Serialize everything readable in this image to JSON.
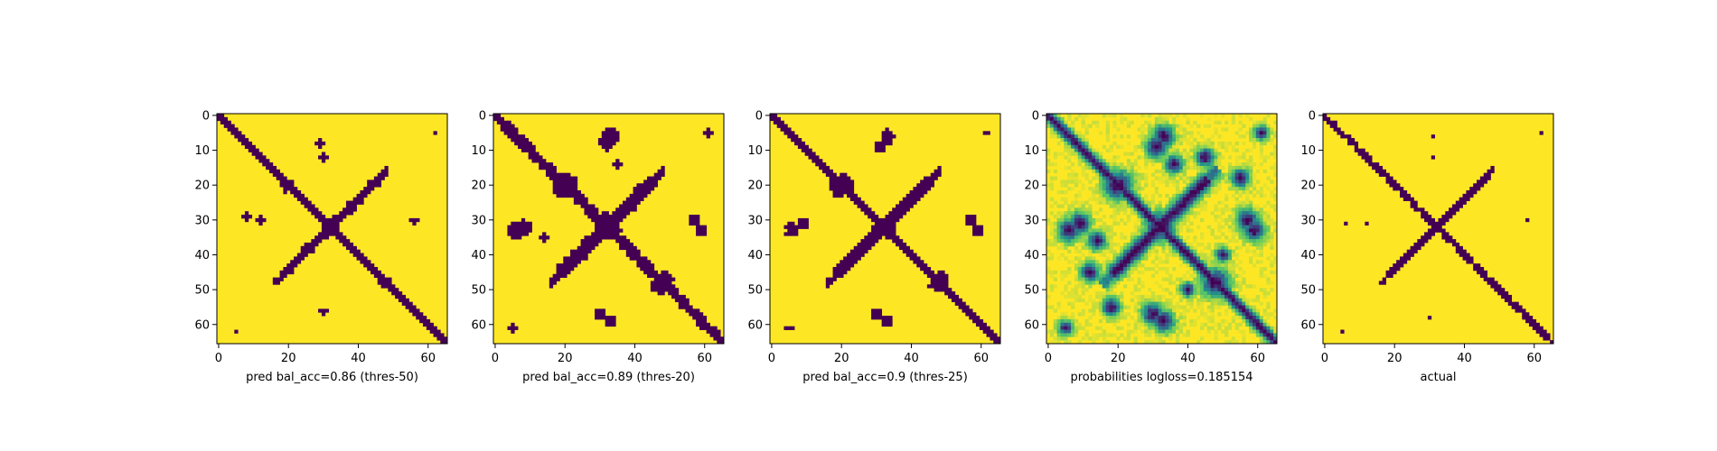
{
  "chart_data": [
    {
      "type": "heatmap",
      "title": "",
      "xlabel": "pred bal_acc=0.86 (thres-50)",
      "ylabel": "",
      "size": 66,
      "xlim": [
        0,
        66
      ],
      "ylim": [
        66,
        0
      ],
      "xticks": [
        0,
        20,
        40,
        60
      ],
      "yticks": [
        0,
        10,
        20,
        30,
        40,
        50,
        60
      ],
      "binary": true,
      "diag_width": 1.6,
      "cross_width": 1.6,
      "cross_center": 32,
      "cross_halfspan": 14,
      "blobs": [
        [
          20,
          20,
          2.5
        ],
        [
          32,
          32,
          3
        ],
        [
          48,
          48,
          2.5
        ],
        [
          29,
          8,
          1.5
        ],
        [
          12,
          30,
          1.3
        ],
        [
          30,
          56,
          1.3
        ],
        [
          5,
          62,
          1
        ]
      ],
      "colormap": {
        "low": "#440154",
        "high": "#fde725"
      }
    },
    {
      "type": "heatmap",
      "title": "",
      "xlabel": "pred bal_acc=0.89 (thres-20)",
      "ylabel": "",
      "size": 66,
      "xlim": [
        0,
        66
      ],
      "ylim": [
        66,
        0
      ],
      "xticks": [
        0,
        20,
        40,
        60
      ],
      "yticks": [
        0,
        10,
        20,
        30,
        40,
        50,
        60
      ],
      "binary": true,
      "diag_width": 2.4,
      "cross_width": 2.4,
      "cross_center": 32,
      "cross_halfspan": 14,
      "blobs": [
        [
          20,
          20,
          4.5
        ],
        [
          32,
          32,
          4.5
        ],
        [
          48,
          48,
          4
        ],
        [
          33,
          6,
          3
        ],
        [
          8,
          32,
          2.5
        ],
        [
          30,
          57,
          2
        ],
        [
          59,
          33,
          2
        ],
        [
          5,
          61,
          1.5
        ],
        [
          14,
          35,
          1.5
        ]
      ],
      "colormap": {
        "low": "#440154",
        "high": "#fde725"
      }
    },
    {
      "type": "heatmap",
      "title": "",
      "xlabel": "pred bal_acc=0.9 (thres-25)",
      "ylabel": "",
      "size": 66,
      "xlim": [
        0,
        66
      ],
      "ylim": [
        66,
        0
      ],
      "xticks": [
        0,
        20,
        40,
        60
      ],
      "yticks": [
        0,
        10,
        20,
        30,
        40,
        50,
        60
      ],
      "binary": true,
      "diag_width": 2.1,
      "cross_width": 2.1,
      "cross_center": 32,
      "cross_halfspan": 14,
      "blobs": [
        [
          20,
          20,
          4
        ],
        [
          32,
          32,
          3.5
        ],
        [
          48,
          48,
          3.5
        ],
        [
          33,
          6,
          2.5
        ],
        [
          9,
          31,
          2
        ],
        [
          30,
          57,
          2
        ],
        [
          59,
          33,
          2
        ],
        [
          5,
          61,
          1.2
        ]
      ],
      "colormap": {
        "low": "#440154",
        "high": "#fde725"
      }
    },
    {
      "type": "heatmap",
      "title": "",
      "xlabel": "probabilities logloss=0.185154",
      "ylabel": "",
      "size": 66,
      "xlim": [
        0,
        66
      ],
      "ylim": [
        66,
        0
      ],
      "xticks": [
        0,
        20,
        40,
        60
      ],
      "yticks": [
        0,
        10,
        20,
        30,
        40,
        50,
        60
      ],
      "binary": false,
      "diag_width": 2.2,
      "cross_width": 2.2,
      "cross_center": 32,
      "cross_halfspan": 14,
      "blobs": [
        [
          20,
          20,
          4
        ],
        [
          32,
          32,
          4
        ],
        [
          48,
          48,
          4
        ],
        [
          33,
          6,
          3
        ],
        [
          9,
          31,
          3
        ],
        [
          30,
          57,
          3
        ],
        [
          59,
          33,
          3
        ],
        [
          5,
          61,
          2
        ],
        [
          14,
          36,
          2.5
        ],
        [
          45,
          12,
          2.5
        ],
        [
          55,
          18,
          2.5
        ],
        [
          40,
          50,
          2
        ]
      ],
      "colormap": {
        "stops": [
          "#440154",
          "#3b528b",
          "#21918c",
          "#5ec962",
          "#fde725"
        ]
      }
    },
    {
      "type": "heatmap",
      "title": "",
      "xlabel": "actual",
      "ylabel": "",
      "size": 66,
      "xlim": [
        0,
        66
      ],
      "ylim": [
        66,
        0
      ],
      "xticks": [
        0,
        20,
        40,
        60
      ],
      "yticks": [
        0,
        10,
        20,
        30,
        40,
        50,
        60
      ],
      "binary": true,
      "diag_width": 1.3,
      "cross_width": 1.3,
      "cross_center": 32,
      "cross_halfspan": 14,
      "blobs": [
        [
          20,
          20,
          1.5
        ],
        [
          32,
          32,
          2
        ],
        [
          48,
          48,
          1.5
        ],
        [
          31,
          6,
          1
        ],
        [
          12,
          31,
          1
        ],
        [
          30,
          58,
          1
        ],
        [
          5,
          62,
          1
        ]
      ],
      "colormap": {
        "low": "#440154",
        "high": "#fde725"
      }
    }
  ]
}
